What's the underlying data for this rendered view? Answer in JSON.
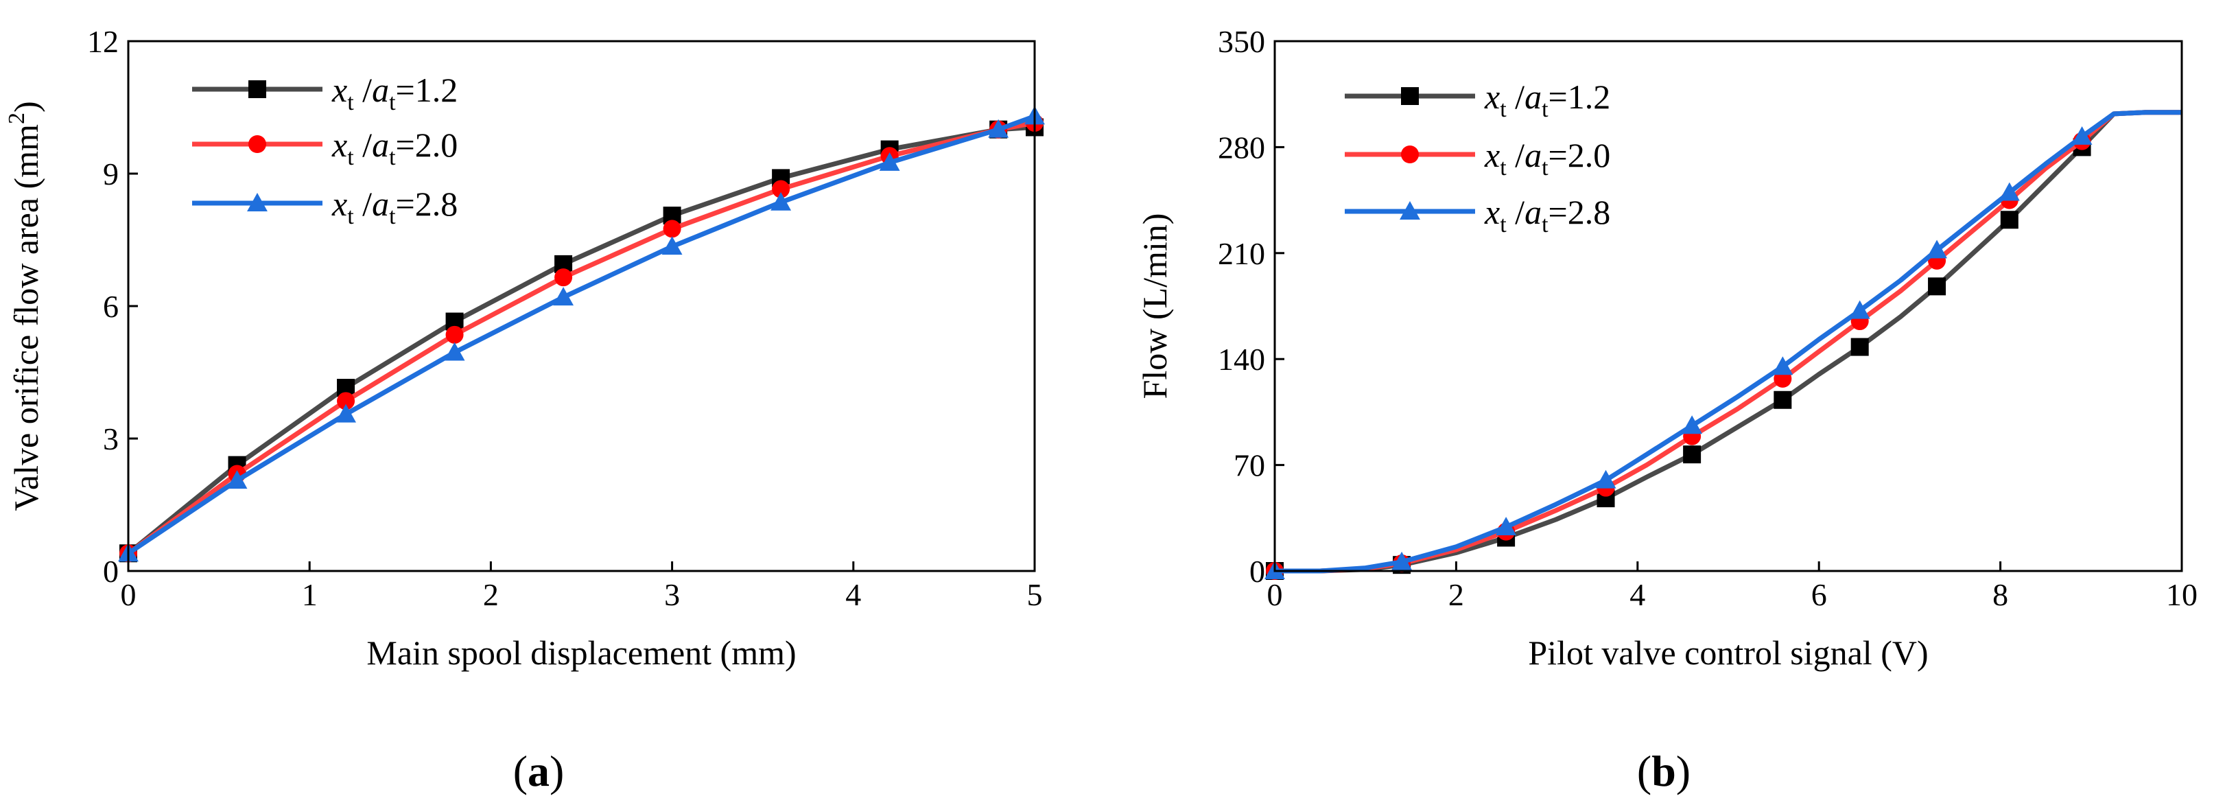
{
  "chart_data": [
    {
      "type": "line",
      "panel_label": "(a)",
      "panel_letter": "a",
      "xlabel": "Main spool displacement (mm)",
      "ylabel": "Valve orifice flow area (mm²)",
      "xlim": [
        0,
        5
      ],
      "ylim": [
        0,
        12
      ],
      "xticks": [
        0,
        1,
        2,
        3,
        4,
        5
      ],
      "yticks": [
        0,
        3,
        6,
        9,
        12
      ],
      "legend_position": "top-left",
      "series": [
        {
          "name": "xt /at=1.2",
          "legend_x": "x",
          "legend_sub1": "t",
          "legend_mid": " /",
          "legend_a": "a",
          "legend_sub2": "t",
          "legend_val": "=1.2",
          "color": "#4a4a4a",
          "marker": "square",
          "marker_color": "#000000",
          "x": [
            0,
            0.6,
            1.2,
            1.8,
            2.4,
            3.0,
            3.6,
            4.2,
            4.8,
            5.0
          ],
          "y": [
            0.4,
            2.4,
            4.15,
            5.65,
            6.95,
            8.05,
            8.9,
            9.55,
            10.0,
            10.05
          ]
        },
        {
          "name": "xt /at=2.0",
          "legend_x": "x",
          "legend_sub1": "t",
          "legend_mid": " /",
          "legend_a": "a",
          "legend_sub2": "t",
          "legend_val": "=2.0",
          "color": "#ff4040",
          "marker": "circle",
          "marker_color": "#ff0000",
          "x": [
            0,
            0.6,
            1.2,
            1.8,
            2.4,
            3.0,
            3.6,
            4.2,
            4.8,
            5.0
          ],
          "y": [
            0.4,
            2.2,
            3.85,
            5.35,
            6.65,
            7.75,
            8.65,
            9.4,
            10.0,
            10.15
          ]
        },
        {
          "name": "xt /at=2.8",
          "legend_x": "x",
          "legend_sub1": "t",
          "legend_mid": " /",
          "legend_a": "a",
          "legend_sub2": "t",
          "legend_val": "=2.8",
          "color": "#1f6fdc",
          "marker": "triangle",
          "marker_color": "#1f6fdc",
          "x": [
            0,
            0.6,
            1.2,
            1.8,
            2.4,
            3.0,
            3.6,
            4.2,
            4.8,
            5.0
          ],
          "y": [
            0.4,
            2.05,
            3.55,
            4.95,
            6.2,
            7.35,
            8.35,
            9.25,
            10.0,
            10.3
          ]
        }
      ]
    },
    {
      "type": "line",
      "panel_label": "(b)",
      "panel_letter": "b",
      "xlabel": "Pilot valve control signal (V)",
      "ylabel": "Flow (L/min)",
      "xlim": [
        0,
        10
      ],
      "ylim": [
        0,
        350
      ],
      "xticks": [
        0,
        2,
        4,
        6,
        8,
        10
      ],
      "yticks": [
        0,
        70,
        140,
        210,
        280,
        350
      ],
      "legend_position": "top-left",
      "series": [
        {
          "name": "xt /at=1.2",
          "legend_x": "x",
          "legend_sub1": "t",
          "legend_mid": " /",
          "legend_a": "a",
          "legend_sub2": "t",
          "legend_val": "=1.2",
          "color": "#4a4a4a",
          "marker": "square",
          "marker_color": "#000000",
          "x": [
            0,
            0.5,
            1.0,
            1.4,
            2.0,
            2.55,
            3.1,
            3.65,
            4.1,
            4.6,
            5.1,
            5.6,
            6.0,
            6.45,
            6.9,
            7.3,
            7.7,
            8.1,
            8.5,
            8.9,
            9.25,
            9.6,
            10.0
          ],
          "y": [
            0,
            0,
            1,
            4,
            12,
            22,
            34,
            48,
            62,
            77,
            95,
            113,
            130,
            148,
            168,
            188,
            210,
            232,
            256,
            280,
            302,
            303,
            303
          ],
          "marker_x": [
            0,
            1.4,
            2.55,
            3.65,
            4.6,
            5.6,
            6.45,
            7.3,
            8.1,
            8.9
          ],
          "marker_y": [
            0,
            4,
            22,
            48,
            77,
            113,
            148,
            188,
            232,
            280
          ]
        },
        {
          "name": "xt /at=2.0",
          "legend_x": "x",
          "legend_sub1": "t",
          "legend_mid": " /",
          "legend_a": "a",
          "legend_sub2": "t",
          "legend_val": "=2.0",
          "color": "#ff4040",
          "marker": "circle",
          "marker_color": "#ff0000",
          "x": [
            0,
            0.5,
            1.0,
            1.4,
            2.0,
            2.55,
            3.1,
            3.65,
            4.1,
            4.6,
            5.1,
            5.6,
            6.0,
            6.45,
            6.9,
            7.3,
            7.7,
            8.1,
            8.5,
            8.9,
            9.25,
            9.6,
            10.0
          ],
          "y": [
            0,
            0,
            1.5,
            5,
            14,
            26,
            40,
            55,
            70,
            89,
            107,
            127,
            145,
            165,
            185,
            205,
            225,
            245,
            266,
            284,
            302,
            303,
            303
          ],
          "marker_x": [
            0,
            1.4,
            2.55,
            3.65,
            4.6,
            5.6,
            6.45,
            7.3,
            8.1,
            8.9
          ],
          "marker_y": [
            0,
            5,
            26,
            55,
            89,
            127,
            165,
            205,
            245,
            284
          ]
        },
        {
          "name": "xt /at=2.8",
          "legend_x": "x",
          "legend_sub1": "t",
          "legend_mid": " /",
          "legend_a": "a",
          "legend_sub2": "t",
          "legend_val": "=2.8",
          "color": "#1f6fdc",
          "marker": "triangle",
          "marker_color": "#1f6fdc",
          "x": [
            0,
            0.5,
            1.0,
            1.4,
            2.0,
            2.55,
            3.1,
            3.65,
            4.1,
            4.6,
            5.1,
            5.6,
            6.0,
            6.45,
            6.9,
            7.3,
            7.7,
            8.1,
            8.5,
            8.9,
            9.25,
            9.6,
            10.0
          ],
          "y": [
            0,
            0,
            2,
            6,
            16,
            29,
            44,
            60,
            77,
            96,
            115,
            135,
            153,
            172,
            192,
            212,
            231,
            250,
            269,
            287,
            302,
            303,
            303
          ],
          "marker_x": [
            0,
            1.4,
            2.55,
            3.65,
            4.6,
            5.6,
            6.45,
            7.3,
            8.1,
            8.9
          ],
          "marker_y": [
            0,
            6,
            29,
            60,
            96,
            135,
            172,
            212,
            250,
            287
          ]
        }
      ]
    }
  ]
}
